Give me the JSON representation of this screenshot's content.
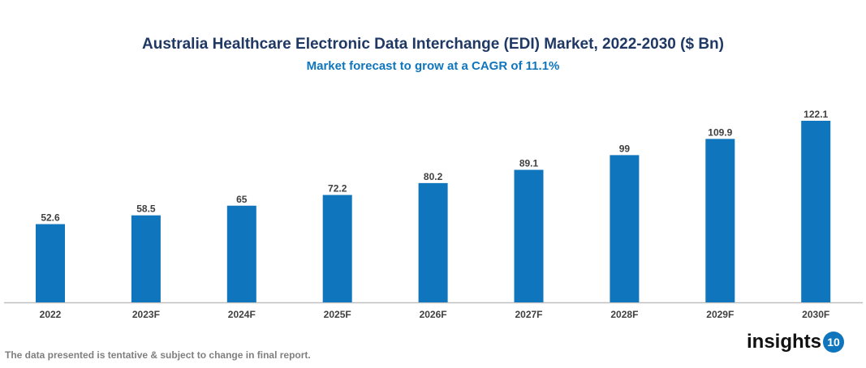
{
  "chart_data": {
    "type": "bar",
    "title": "Australia Healthcare Electronic Data Interchange (EDI) Market, 2022-2030 ($ Bn)",
    "subtitle": "Market forecast to grow at a CAGR of 11.1%",
    "categories": [
      "2022",
      "2023F",
      "2024F",
      "2025F",
      "2026F",
      "2027F",
      "2028F",
      "2029F",
      "2030F"
    ],
    "values": [
      52.6,
      58.5,
      65,
      72.2,
      80.2,
      89.1,
      99,
      109.9,
      122.1
    ],
    "value_labels": [
      "52.6",
      "58.5",
      "65",
      "72.2",
      "80.2",
      "89.1",
      "99",
      "109.9",
      "122.1"
    ],
    "xlabel": "",
    "ylabel": "",
    "ylim": [
      0,
      130
    ],
    "grid": false,
    "legend": "none",
    "bar_color": "#0f75bc"
  },
  "footer": "The data presented is tentative & subject to change in final report.",
  "logo": {
    "text": "insights",
    "badge": "10"
  }
}
